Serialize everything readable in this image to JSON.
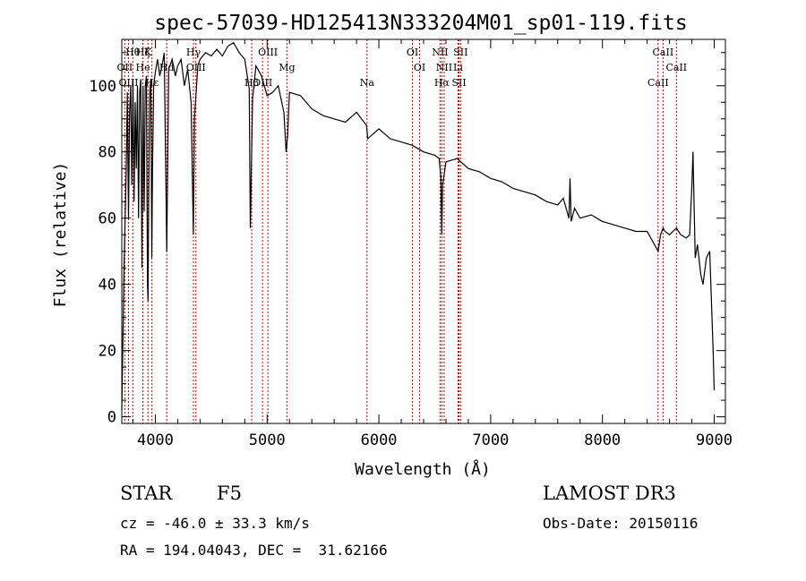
{
  "chart_data": {
    "type": "line",
    "title": "spec-57039-HD125413N333204M01_sp01-119.fits",
    "xlabel": "Wavelength (Å)",
    "ylabel": "Flux (relative)",
    "xlim": [
      3700,
      9100
    ],
    "ylim": [
      -2,
      114
    ],
    "x_ticks": [
      4000,
      5000,
      6000,
      7000,
      8000,
      9000
    ],
    "y_ticks": [
      0,
      20,
      40,
      60,
      80,
      100
    ],
    "series": [
      {
        "name": "flux",
        "x": [
          3700,
          3720,
          3740,
          3750,
          3760,
          3770,
          3780,
          3790,
          3800,
          3810,
          3820,
          3830,
          3840,
          3850,
          3860,
          3870,
          3880,
          3890,
          3900,
          3910,
          3920,
          3930,
          3935,
          3940,
          3950,
          3960,
          3968,
          3975,
          3985,
          4000,
          4020,
          4040,
          4060,
          4080,
          4102,
          4120,
          4150,
          4180,
          4200,
          4230,
          4260,
          4290,
          4320,
          4340,
          4350,
          4380,
          4400,
          4450,
          4500,
          4550,
          4600,
          4650,
          4700,
          4750,
          4800,
          4840,
          4850,
          4861,
          4870,
          4900,
          4950,
          5000,
          5050,
          5100,
          5150,
          5170,
          5184,
          5200,
          5300,
          5400,
          5500,
          5600,
          5700,
          5800,
          5890,
          5900,
          6000,
          6100,
          6200,
          6300,
          6400,
          6500,
          6540,
          6555,
          6563,
          6570,
          6600,
          6700,
          6800,
          6900,
          7000,
          7100,
          7200,
          7300,
          7400,
          7500,
          7600,
          7650,
          7700,
          7710,
          7720,
          7750,
          7800,
          7900,
          8000,
          8100,
          8200,
          8300,
          8400,
          8498,
          8520,
          8542,
          8560,
          8600,
          8662,
          8700,
          8750,
          8780,
          8800,
          8810,
          8830,
          8850,
          8880,
          8900,
          8930,
          8960,
          8990,
          9000
        ],
        "values": [
          2,
          45,
          75,
          98,
          60,
          92,
          100,
          70,
          102,
          65,
          95,
          75,
          100,
          60,
          98,
          102,
          45,
          100,
          62,
          100,
          103,
          40,
          35,
          65,
          98,
          102,
          48,
          75,
          100,
          104,
          108,
          103,
          106,
          110,
          50,
          105,
          108,
          103,
          106,
          108,
          100,
          105,
          95,
          55,
          90,
          106,
          108,
          110,
          109,
          111,
          109,
          112,
          113,
          110,
          108,
          99,
          57,
          78,
          96,
          106,
          103,
          97,
          98,
          100,
          92,
          80,
          85,
          98,
          97,
          93,
          91,
          90,
          89,
          92,
          88,
          84,
          87,
          84,
          83,
          82,
          80,
          79,
          78,
          72,
          55,
          70,
          77,
          78,
          75,
          74,
          72,
          71,
          69,
          68,
          67,
          65,
          64,
          66,
          60,
          72,
          59,
          63,
          60,
          61,
          59,
          58,
          57,
          56,
          56,
          50,
          55,
          57,
          56,
          55,
          57,
          55,
          54,
          55,
          70,
          80,
          48,
          52,
          43,
          40,
          48,
          50,
          20,
          8
        ]
      }
    ],
    "lines": [
      {
        "label": "Hθ",
        "wave": 3798
      },
      {
        "label": "OII",
        "wave": 3727
      },
      {
        "label": "OIII",
        "wave": 3760
      },
      {
        "label": "K",
        "wave": 3934
      },
      {
        "label": "He",
        "wave": 3889
      },
      {
        "label": "Hε",
        "wave": 3970
      },
      {
        "label": "Hζ",
        "wave": 3889
      },
      {
        "label": "Hd",
        "wave": 4102
      },
      {
        "label": "Hβ",
        "wave": 4862
      },
      {
        "label": "Hγ",
        "wave": 4341
      },
      {
        "label": "OIII",
        "wave": 4363
      },
      {
        "label": "OIII",
        "wave": 4959
      },
      {
        "label": "OIII",
        "wave": 5007
      },
      {
        "label": "Mg",
        "wave": 5177
      },
      {
        "label": "Na",
        "wave": 5894
      },
      {
        "label": "OI",
        "wave": 6300
      },
      {
        "label": "OI",
        "wave": 6364
      },
      {
        "label": "Hα",
        "wave": 6563
      },
      {
        "label": "NII",
        "wave": 6548
      },
      {
        "label": "NII",
        "wave": 6584
      },
      {
        "label": "SII",
        "wave": 6717
      },
      {
        "label": "SII",
        "wave": 6731
      },
      {
        "label": "Li",
        "wave": 6708
      },
      {
        "label": "CaII",
        "wave": 8498
      },
      {
        "label": "CaII",
        "wave": 8542
      },
      {
        "label": "CaII",
        "wave": 8662
      }
    ]
  },
  "info": {
    "object_class": "STAR",
    "subclass": "F5",
    "survey": "LAMOST DR3",
    "redshift": "cz = -46.0 ± 33.3 km/s",
    "obs_date": "Obs-Date: 20150116",
    "coords": "RA = 194.04043, DEC =  31.62166"
  },
  "colors": {
    "line_marker": "#cc0000",
    "spectrum": "#000000",
    "axes": "#000000"
  }
}
